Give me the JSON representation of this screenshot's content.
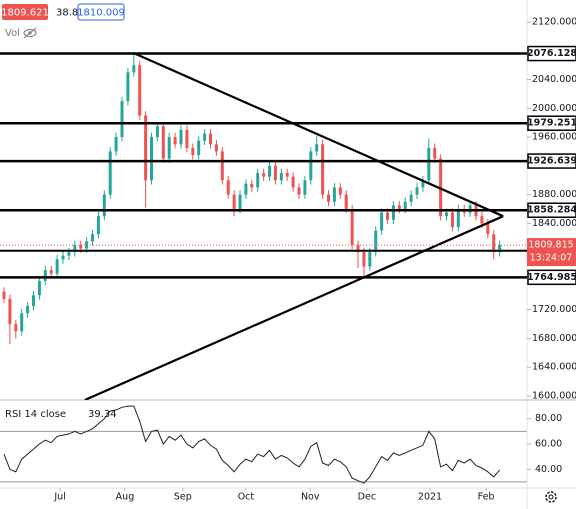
{
  "chart_data": {
    "type": "candlestick",
    "x": [
      0,
      1,
      2,
      3,
      4,
      5,
      6,
      7,
      8,
      9,
      10,
      11,
      12,
      13,
      14,
      15,
      16,
      17,
      18,
      19,
      20,
      21,
      22,
      23,
      24,
      25,
      26,
      27,
      28,
      29,
      30,
      31,
      32,
      33,
      34,
      35,
      36,
      37,
      38,
      39,
      40,
      41,
      42,
      43,
      44,
      45,
      46,
      47,
      48,
      49,
      50,
      51,
      52,
      53,
      54,
      55,
      56,
      57,
      58,
      59,
      60,
      61,
      62,
      63,
      64,
      65,
      66,
      67,
      68,
      69,
      70,
      71,
      72,
      73,
      74,
      75,
      76,
      77,
      78,
      79,
      80,
      81,
      82,
      83,
      84
    ],
    "open": [
      1745,
      1735,
      1700,
      1690,
      1715,
      1725,
      1740,
      1760,
      1775,
      1770,
      1790,
      1795,
      1800,
      1810,
      1805,
      1815,
      1825,
      1850,
      1880,
      1940,
      1960,
      2010,
      2050,
      2060,
      1990,
      1900,
      1960,
      1975,
      1930,
      1960,
      1950,
      1970,
      1945,
      1935,
      1955,
      1965,
      1950,
      1940,
      1900,
      1880,
      1860,
      1880,
      1895,
      1890,
      1910,
      1905,
      1920,
      1900,
      1910,
      1905,
      1890,
      1880,
      1900,
      1940,
      1950,
      1880,
      1870,
      1890,
      1880,
      1860,
      1810,
      1800,
      1780,
      1800,
      1830,
      1855,
      1845,
      1865,
      1860,
      1870,
      1880,
      1890,
      1900,
      1945,
      1930,
      1850,
      1855,
      1835,
      1860,
      1855,
      1865,
      1850,
      1840,
      1825,
      1800
    ],
    "high": [
      1751,
      1741,
      1706,
      1721,
      1731,
      1746,
      1766,
      1781,
      1781,
      1796,
      1801,
      1806,
      1816,
      1816,
      1821,
      1831,
      1856,
      1886,
      1946,
      1966,
      2016,
      2056,
      2075,
      2066,
      1996,
      1966,
      1981,
      1981,
      1966,
      1966,
      1976,
      1976,
      1951,
      1961,
      1971,
      1971,
      1956,
      1946,
      1906,
      1886,
      1886,
      1901,
      1901,
      1916,
      1916,
      1926,
      1926,
      1916,
      1916,
      1911,
      1896,
      1906,
      1946,
      1962,
      1956,
      1886,
      1896,
      1896,
      1886,
      1866,
      1816,
      1806,
      1806,
      1836,
      1861,
      1861,
      1871,
      1871,
      1876,
      1886,
      1896,
      1906,
      1958,
      1951,
      1936,
      1861,
      1861,
      1866,
      1866,
      1871,
      1871,
      1856,
      1846,
      1831,
      1816
    ],
    "low": [
      1729,
      1672,
      1680,
      1684,
      1709,
      1719,
      1734,
      1754,
      1764,
      1764,
      1784,
      1789,
      1794,
      1799,
      1799,
      1809,
      1819,
      1844,
      1874,
      1934,
      1954,
      2004,
      2044,
      1984,
      1862,
      1894,
      1954,
      1924,
      1924,
      1944,
      1944,
      1939,
      1929,
      1929,
      1949,
      1944,
      1934,
      1894,
      1874,
      1850,
      1854,
      1874,
      1884,
      1884,
      1899,
      1899,
      1894,
      1894,
      1899,
      1884,
      1874,
      1874,
      1894,
      1934,
      1874,
      1864,
      1864,
      1874,
      1854,
      1804,
      1778,
      1765,
      1774,
      1794,
      1824,
      1839,
      1839,
      1854,
      1854,
      1864,
      1874,
      1884,
      1894,
      1924,
      1844,
      1844,
      1829,
      1829,
      1849,
      1849,
      1844,
      1834,
      1819,
      1790,
      1794
    ],
    "close": [
      1735,
      1700,
      1690,
      1715,
      1725,
      1740,
      1760,
      1775,
      1770,
      1790,
      1795,
      1800,
      1810,
      1805,
      1815,
      1825,
      1850,
      1880,
      1940,
      1960,
      2010,
      2050,
      2060,
      1990,
      1900,
      1960,
      1975,
      1930,
      1960,
      1950,
      1970,
      1945,
      1935,
      1955,
      1965,
      1950,
      1940,
      1900,
      1880,
      1860,
      1880,
      1895,
      1890,
      1910,
      1905,
      1920,
      1900,
      1910,
      1905,
      1890,
      1880,
      1900,
      1940,
      1950,
      1880,
      1870,
      1890,
      1880,
      1860,
      1810,
      1800,
      1780,
      1800,
      1830,
      1855,
      1845,
      1865,
      1860,
      1870,
      1880,
      1890,
      1900,
      1945,
      1930,
      1850,
      1855,
      1835,
      1860,
      1855,
      1865,
      1850,
      1840,
      1825,
      1800,
      1810
    ],
    "up_color": "#26a69a",
    "down_color": "#ef5350",
    "xlim": [
      -0.68,
      88.64
    ],
    "xticks": [
      {
        "value": 9.5,
        "label": "Jul"
      },
      {
        "value": 20.5,
        "label": "Aug"
      },
      {
        "value": 30.3,
        "label": "Sep"
      },
      {
        "value": 41,
        "label": "Oct"
      },
      {
        "value": 51.9,
        "label": "Nov"
      },
      {
        "value": 61.5,
        "label": "Dec"
      },
      {
        "value": 72.2,
        "label": "2021"
      },
      {
        "value": 81.7,
        "label": "Feb"
      }
    ],
    "ylim": [
      1594.4,
      2150.6
    ],
    "yticks": [
      {
        "value": 1600,
        "label": "1600.000"
      },
      {
        "value": 1640,
        "label": "1640.000"
      },
      {
        "value": 1680,
        "label": "1680.000"
      },
      {
        "value": 1720,
        "label": "1720.000"
      },
      {
        "value": 1760,
        "label": "1760.000"
      },
      {
        "value": 1800,
        "label": "1800.000"
      },
      {
        "value": 1840,
        "label": "1840.000"
      },
      {
        "value": 1880,
        "label": "1880.000"
      },
      {
        "value": 1920,
        "label": "1920.000"
      },
      {
        "value": 1960,
        "label": "1960.000"
      },
      {
        "value": 2000,
        "label": "2000.000"
      },
      {
        "value": 2040,
        "label": "2040.000"
      },
      {
        "value": 2080,
        "label": "2080.000"
      },
      {
        "value": 2120,
        "label": "2120.000"
      }
    ],
    "levels": [
      2076.128,
      1979.251,
      1926.639,
      1858.284,
      1764.985
    ],
    "unlabeled_levels": [
      1802
    ],
    "trendlines": [
      {
        "x": [
          21.9,
          84.6
        ],
        "y": [
          2077,
          1850
        ]
      },
      {
        "x": [
          13.7,
          84.6
        ],
        "y": [
          1594.4,
          1850
        ]
      }
    ],
    "last_price": 1809.815,
    "countdown": "13:24:07",
    "bid": 1809.621,
    "spread": 38.8,
    "ask": 1810.009,
    "volume_label": "Vol",
    "rsi": {
      "title": "RSI 14 close",
      "color": "#1e222d",
      "values": [
        52,
        40,
        38,
        48,
        52,
        56,
        60,
        63,
        61,
        66,
        67,
        68,
        70,
        68,
        70,
        72,
        76,
        80,
        86,
        87,
        89,
        90,
        90,
        78,
        62,
        70,
        71,
        60,
        66,
        63,
        67,
        60,
        57,
        62,
        64,
        59,
        56,
        47,
        43,
        38,
        44,
        48,
        46,
        52,
        50,
        55,
        48,
        51,
        49,
        45,
        42,
        48,
        58,
        61,
        45,
        43,
        48,
        46,
        42,
        33,
        31,
        29,
        34,
        42,
        50,
        47,
        53,
        51,
        53,
        55,
        57,
        59,
        70,
        64,
        42,
        44,
        39,
        47,
        45,
        48,
        43,
        41,
        38,
        34,
        39.34
      ],
      "ylim": [
        25.2,
        94.8
      ],
      "yticks": [
        {
          "value": 80,
          "label": "80.00"
        },
        {
          "value": 60,
          "label": "60.00"
        },
        {
          "value": 40,
          "label": "40.00"
        }
      ],
      "bands": [
        70,
        30
      ]
    }
  }
}
